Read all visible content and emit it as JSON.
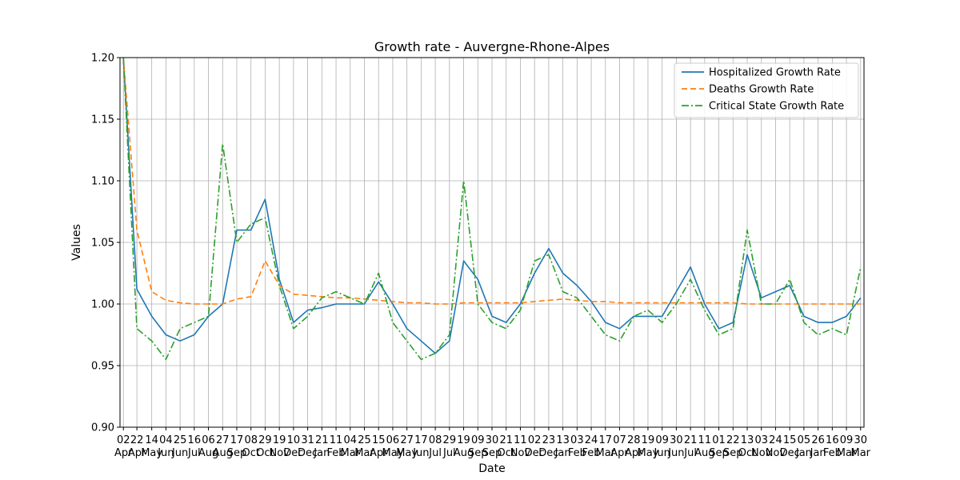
{
  "chart_data": {
    "type": "line",
    "title": "Growth rate - Auvergne-Rhone-Alpes",
    "xlabel": "Date",
    "ylabel": "Values",
    "ylim": [
      0.9,
      1.2
    ],
    "yticks": [
      "0.90",
      "0.95",
      "1.00",
      "1.05",
      "1.10",
      "1.15",
      "1.20"
    ],
    "grid": true,
    "legend_position": "top-right",
    "x": [
      "2020-04-02",
      "2020-04-22",
      "2020-05-14",
      "2020-06-04",
      "2020-06-25",
      "2020-07-16",
      "2020-08-06",
      "2020-08-27",
      "2020-09-17",
      "2020-10-08",
      "2020-10-29",
      "2020-11-19",
      "2020-12-10",
      "2020-12-31",
      "2021-01-21",
      "2021-02-11",
      "2021-03-04",
      "2021-03-25",
      "2021-04-15",
      "2021-05-06",
      "2021-05-27",
      "2021-06-17",
      "2021-07-08",
      "2021-07-29",
      "2021-08-19",
      "2021-09-09",
      "2021-09-30",
      "2021-10-21",
      "2021-11-11",
      "2021-12-02",
      "2021-12-23",
      "2022-01-13",
      "2022-02-03",
      "2022-02-24",
      "2022-03-17",
      "2022-04-07",
      "2022-04-28",
      "2022-05-19",
      "2022-06-09",
      "2022-06-30",
      "2022-07-21",
      "2022-08-11",
      "2022-09-01",
      "2022-09-22",
      "2022-10-13",
      "2022-11-03",
      "2022-11-24",
      "2022-12-15",
      "2023-01-05",
      "2023-01-26",
      "2023-02-16",
      "2023-03-09",
      "2023-03-30"
    ],
    "xtick_labels": [
      {
        "day": "02",
        "month": "Apr"
      },
      {
        "day": "22",
        "month": "Apr"
      },
      {
        "day": "14",
        "month": "May"
      },
      {
        "day": "04",
        "month": "Jun"
      },
      {
        "day": "25",
        "month": "Jun"
      },
      {
        "day": "16",
        "month": "Jul"
      },
      {
        "day": "06",
        "month": "Aug"
      },
      {
        "day": "27",
        "month": "Aug"
      },
      {
        "day": "17",
        "month": "Sep"
      },
      {
        "day": "08",
        "month": "Oct"
      },
      {
        "day": "29",
        "month": "Oct"
      },
      {
        "day": "19",
        "month": "Nov"
      },
      {
        "day": "10",
        "month": "Dec"
      },
      {
        "day": "31",
        "month": "Dec"
      },
      {
        "day": "21",
        "month": "Jan"
      },
      {
        "day": "11",
        "month": "Feb"
      },
      {
        "day": "04",
        "month": "Mar"
      },
      {
        "day": "25",
        "month": "Mar"
      },
      {
        "day": "15",
        "month": "Apr"
      },
      {
        "day": "06",
        "month": "May"
      },
      {
        "day": "27",
        "month": "May"
      },
      {
        "day": "17",
        "month": "Jun"
      },
      {
        "day": "08",
        "month": "Jul"
      },
      {
        "day": "29",
        "month": "Jul"
      },
      {
        "day": "19",
        "month": "Aug"
      },
      {
        "day": "09",
        "month": "Sep"
      },
      {
        "day": "30",
        "month": "Sep"
      },
      {
        "day": "21",
        "month": "Oct"
      },
      {
        "day": "11",
        "month": "Nov"
      },
      {
        "day": "02",
        "month": "Dec"
      },
      {
        "day": "23",
        "month": "Dec"
      },
      {
        "day": "13",
        "month": "Jan"
      },
      {
        "day": "03",
        "month": "Feb"
      },
      {
        "day": "24",
        "month": "Feb"
      },
      {
        "day": "17",
        "month": "Mar"
      },
      {
        "day": "07",
        "month": "Apr"
      },
      {
        "day": "28",
        "month": "Apr"
      },
      {
        "day": "19",
        "month": "May"
      },
      {
        "day": "09",
        "month": "Jun"
      },
      {
        "day": "30",
        "month": "Jun"
      },
      {
        "day": "21",
        "month": "Jul"
      },
      {
        "day": "11",
        "month": "Aug"
      },
      {
        "day": "01",
        "month": "Sep"
      },
      {
        "day": "22",
        "month": "Sep"
      },
      {
        "day": "13",
        "month": "Oct"
      },
      {
        "day": "03",
        "month": "Nov"
      },
      {
        "day": "24",
        "month": "Nov"
      },
      {
        "day": "15",
        "month": "Dec"
      },
      {
        "day": "05",
        "month": "Jan"
      },
      {
        "day": "26",
        "month": "Jan"
      },
      {
        "day": "16",
        "month": "Feb"
      },
      {
        "day": "09",
        "month": "Mar"
      },
      {
        "day": "30",
        "month": "Mar"
      }
    ],
    "series": [
      {
        "name": "Hospitalized Growth Rate",
        "color": "#1f77b4",
        "style": "solid",
        "values": [
          1.2,
          1.012,
          0.99,
          0.975,
          0.97,
          0.975,
          0.99,
          1.0,
          1.06,
          1.06,
          1.085,
          1.02,
          0.985,
          0.995,
          0.997,
          1.0,
          1.0,
          1.0,
          1.018,
          1.0,
          0.98,
          0.97,
          0.96,
          0.97,
          1.035,
          1.02,
          0.99,
          0.985,
          1.0,
          1.025,
          1.045,
          1.025,
          1.015,
          1.002,
          0.985,
          0.98,
          0.99,
          0.99,
          0.99,
          1.01,
          1.03,
          1.0,
          0.98,
          0.985,
          1.04,
          1.005,
          1.01,
          1.015,
          0.99,
          0.985,
          0.985,
          0.99,
          1.005
        ]
      },
      {
        "name": "Deaths Growth Rate",
        "color": "#ff7f0e",
        "style": "dashed",
        "values": [
          1.2,
          1.06,
          1.01,
          1.003,
          1.001,
          1.0,
          1.0,
          1.0,
          1.004,
          1.006,
          1.035,
          1.015,
          1.008,
          1.007,
          1.006,
          1.005,
          1.005,
          1.004,
          1.003,
          1.002,
          1.001,
          1.001,
          1.0,
          1.0,
          1.001,
          1.001,
          1.001,
          1.001,
          1.001,
          1.002,
          1.003,
          1.004,
          1.003,
          1.002,
          1.002,
          1.001,
          1.001,
          1.001,
          1.001,
          1.001,
          1.001,
          1.001,
          1.001,
          1.001,
          1.0,
          1.0,
          1.0,
          1.0,
          1.0,
          1.0,
          1.0,
          1.0,
          1.0
        ]
      },
      {
        "name": "Critical State Growth Rate",
        "color": "#2ca02c",
        "style": "dashdot",
        "values": [
          1.2,
          0.98,
          0.97,
          0.955,
          0.98,
          0.985,
          0.99,
          1.13,
          1.05,
          1.065,
          1.07,
          1.015,
          0.98,
          0.99,
          1.005,
          1.01,
          1.005,
          1.0,
          1.025,
          0.985,
          0.97,
          0.955,
          0.96,
          0.975,
          1.1,
          1.0,
          0.985,
          0.98,
          0.995,
          1.035,
          1.04,
          1.01,
          1.005,
          0.99,
          0.975,
          0.97,
          0.99,
          0.995,
          0.985,
          1.0,
          1.02,
          0.995,
          0.975,
          0.98,
          1.06,
          1.0,
          1.0,
          1.02,
          0.985,
          0.975,
          0.98,
          0.975,
          1.03
        ]
      }
    ]
  }
}
